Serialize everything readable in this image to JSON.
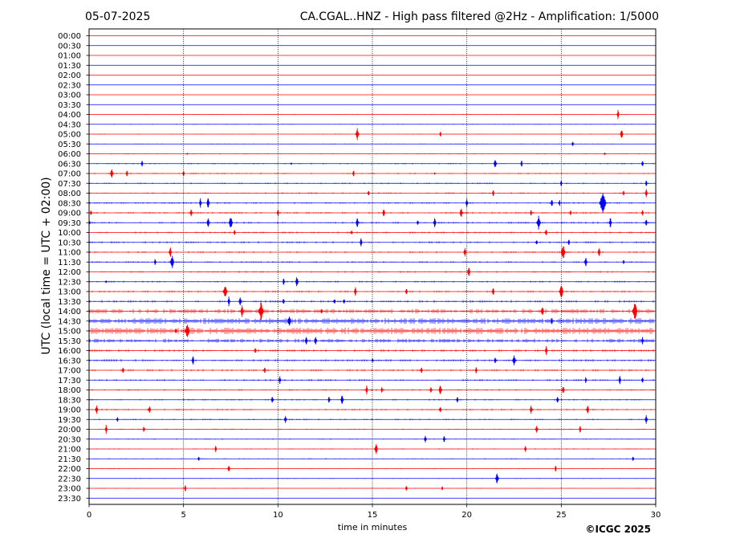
{
  "header": {
    "date": "05-07-2025",
    "title": "CA.CGAL..HNZ - High pass filtered @2Hz - Amplification: 1/5000"
  },
  "copyright": "©ICGC 2025",
  "chart_data": {
    "type": "line",
    "title": "CA.CGAL..HNZ - High pass filtered @2Hz - Amplification: 1/5000",
    "date": "05-07-2025",
    "xlabel": "time in minutes",
    "ylabel": "UTC (local time = UTC + 02:00)",
    "xlim": [
      0,
      30
    ],
    "x_ticks": [
      0,
      5,
      10,
      15,
      20,
      25,
      30
    ],
    "y_tick_labels": [
      "00:00",
      "00:30",
      "01:00",
      "01:30",
      "02:00",
      "02:30",
      "03:00",
      "03:30",
      "04:00",
      "04:30",
      "05:00",
      "05:30",
      "06:00",
      "06:30",
      "07:00",
      "07:30",
      "08:00",
      "08:30",
      "09:00",
      "09:30",
      "10:00",
      "10:30",
      "11:00",
      "11:30",
      "12:00",
      "12:30",
      "13:00",
      "13:30",
      "14:00",
      "14:30",
      "15:00",
      "15:30",
      "16:00",
      "16:30",
      "17:00",
      "17:30",
      "18:00",
      "18:30",
      "19:00",
      "19:30",
      "20:00",
      "20:30",
      "21:00",
      "21:30",
      "22:00",
      "22:30",
      "23:00",
      "23:30"
    ],
    "vertical_gridlines": [
      5,
      10,
      15,
      20,
      25
    ],
    "grid": "vertical dotted",
    "trace_colors": [
      "#ff0000",
      "#0000ff"
    ],
    "trace_color_pattern": "alternating, starting red at 00:00",
    "noise_level": [
      0.3,
      0.3,
      0.3,
      0.3,
      0.3,
      0.3,
      0.3,
      0.3,
      0.4,
      0.4,
      0.4,
      0.4,
      0.5,
      0.6,
      0.7,
      0.7,
      0.8,
      0.8,
      0.9,
      0.9,
      0.9,
      0.9,
      0.8,
      0.8,
      0.8,
      0.8,
      0.9,
      1.2,
      1.8,
      2.4,
      2.6,
      1.6,
      1.2,
      1.1,
      1.0,
      0.9,
      0.8,
      0.7,
      0.8,
      0.7,
      0.6,
      0.5,
      0.5,
      0.5,
      0.5,
      0.4,
      0.4,
      0.3
    ],
    "events": [
      {
        "row": 8,
        "t": 28.0,
        "amp": 6
      },
      {
        "row": 10,
        "t": 14.2,
        "amp": 8
      },
      {
        "row": 10,
        "t": 18.6,
        "amp": 4
      },
      {
        "row": 10,
        "t": 28.2,
        "amp": 7
      },
      {
        "row": 11,
        "t": 25.6,
        "amp": 4
      },
      {
        "row": 12,
        "t": 5.2,
        "amp": 2
      },
      {
        "row": 12,
        "t": 27.3,
        "amp": 3
      },
      {
        "row": 13,
        "t": 2.8,
        "amp": 5
      },
      {
        "row": 13,
        "t": 10.7,
        "amp": 2
      },
      {
        "row": 13,
        "t": 21.5,
        "amp": 7
      },
      {
        "row": 13,
        "t": 22.9,
        "amp": 5
      },
      {
        "row": 13,
        "t": 29.3,
        "amp": 5
      },
      {
        "row": 14,
        "t": 1.2,
        "amp": 7
      },
      {
        "row": 14,
        "t": 2.0,
        "amp": 5
      },
      {
        "row": 14,
        "t": 5.0,
        "amp": 5
      },
      {
        "row": 14,
        "t": 14.0,
        "amp": 5
      },
      {
        "row": 14,
        "t": 18.3,
        "amp": 2
      },
      {
        "row": 15,
        "t": 25.0,
        "amp": 5
      },
      {
        "row": 15,
        "t": 29.5,
        "amp": 5
      },
      {
        "row": 16,
        "t": 14.8,
        "amp": 5
      },
      {
        "row": 16,
        "t": 21.4,
        "amp": 5
      },
      {
        "row": 16,
        "t": 28.3,
        "amp": 5
      },
      {
        "row": 16,
        "t": 29.5,
        "amp": 6
      },
      {
        "row": 17,
        "t": 5.9,
        "amp": 6
      },
      {
        "row": 17,
        "t": 6.3,
        "amp": 7
      },
      {
        "row": 17,
        "t": 20.0,
        "amp": 6
      },
      {
        "row": 17,
        "t": 24.5,
        "amp": 6
      },
      {
        "row": 17,
        "t": 24.9,
        "amp": 5
      },
      {
        "row": 17,
        "t": 27.2,
        "amp": 16
      },
      {
        "row": 18,
        "t": 0.1,
        "amp": 5
      },
      {
        "row": 18,
        "t": 5.4,
        "amp": 6
      },
      {
        "row": 18,
        "t": 10.0,
        "amp": 5
      },
      {
        "row": 18,
        "t": 15.6,
        "amp": 6
      },
      {
        "row": 18,
        "t": 19.7,
        "amp": 7
      },
      {
        "row": 18,
        "t": 23.4,
        "amp": 5
      },
      {
        "row": 18,
        "t": 25.5,
        "amp": 4
      },
      {
        "row": 18,
        "t": 29.3,
        "amp": 5
      },
      {
        "row": 19,
        "t": 0.0,
        "amp": 7
      },
      {
        "row": 19,
        "t": 6.3,
        "amp": 7
      },
      {
        "row": 19,
        "t": 7.5,
        "amp": 9
      },
      {
        "row": 19,
        "t": 14.2,
        "amp": 7
      },
      {
        "row": 19,
        "t": 17.4,
        "amp": 5
      },
      {
        "row": 19,
        "t": 18.3,
        "amp": 7
      },
      {
        "row": 19,
        "t": 23.8,
        "amp": 10
      },
      {
        "row": 19,
        "t": 27.6,
        "amp": 7
      },
      {
        "row": 19,
        "t": 29.5,
        "amp": 6
      },
      {
        "row": 20,
        "t": 7.7,
        "amp": 5
      },
      {
        "row": 20,
        "t": 13.9,
        "amp": 4
      },
      {
        "row": 20,
        "t": 24.2,
        "amp": 5
      },
      {
        "row": 21,
        "t": 14.4,
        "amp": 6
      },
      {
        "row": 21,
        "t": 23.7,
        "amp": 5
      },
      {
        "row": 21,
        "t": 25.4,
        "amp": 5
      },
      {
        "row": 22,
        "t": 4.3,
        "amp": 7
      },
      {
        "row": 22,
        "t": 19.9,
        "amp": 7
      },
      {
        "row": 22,
        "t": 25.1,
        "amp": 10
      },
      {
        "row": 22,
        "t": 27.0,
        "amp": 6
      },
      {
        "row": 23,
        "t": 3.5,
        "amp": 5
      },
      {
        "row": 23,
        "t": 4.4,
        "amp": 9
      },
      {
        "row": 23,
        "t": 26.3,
        "amp": 7
      },
      {
        "row": 23,
        "t": 28.3,
        "amp": 4
      },
      {
        "row": 24,
        "t": 20.1,
        "amp": 7
      },
      {
        "row": 25,
        "t": 0.9,
        "amp": 3
      },
      {
        "row": 25,
        "t": 10.3,
        "amp": 5
      },
      {
        "row": 25,
        "t": 11.0,
        "amp": 7
      },
      {
        "row": 26,
        "t": 7.2,
        "amp": 10
      },
      {
        "row": 26,
        "t": 14.1,
        "amp": 6
      },
      {
        "row": 26,
        "t": 16.8,
        "amp": 5
      },
      {
        "row": 26,
        "t": 21.4,
        "amp": 6
      },
      {
        "row": 26,
        "t": 25.0,
        "amp": 10
      },
      {
        "row": 27,
        "t": 7.4,
        "amp": 6
      },
      {
        "row": 27,
        "t": 8.0,
        "amp": 6
      },
      {
        "row": 27,
        "t": 10.3,
        "amp": 4
      },
      {
        "row": 27,
        "t": 13.0,
        "amp": 5
      },
      {
        "row": 27,
        "t": 13.5,
        "amp": 5
      },
      {
        "row": 28,
        "t": 8.1,
        "amp": 8
      },
      {
        "row": 28,
        "t": 9.1,
        "amp": 13
      },
      {
        "row": 28,
        "t": 12.3,
        "amp": 5
      },
      {
        "row": 28,
        "t": 24.0,
        "amp": 7
      },
      {
        "row": 28,
        "t": 28.9,
        "amp": 12
      },
      {
        "row": 29,
        "t": 10.6,
        "amp": 8
      },
      {
        "row": 29,
        "t": 24.5,
        "amp": 5
      },
      {
        "row": 30,
        "t": 5.2,
        "amp": 11
      },
      {
        "row": 30,
        "t": 4.6,
        "amp": 5
      },
      {
        "row": 31,
        "t": 11.5,
        "amp": 6
      },
      {
        "row": 31,
        "t": 12.0,
        "amp": 6
      },
      {
        "row": 31,
        "t": 29.3,
        "amp": 6
      },
      {
        "row": 32,
        "t": 8.8,
        "amp": 5
      },
      {
        "row": 32,
        "t": 24.2,
        "amp": 6
      },
      {
        "row": 33,
        "t": 5.5,
        "amp": 6
      },
      {
        "row": 33,
        "t": 15.0,
        "amp": 3
      },
      {
        "row": 33,
        "t": 21.5,
        "amp": 5
      },
      {
        "row": 33,
        "t": 22.5,
        "amp": 8
      },
      {
        "row": 34,
        "t": 1.8,
        "amp": 5
      },
      {
        "row": 34,
        "t": 9.3,
        "amp": 5
      },
      {
        "row": 34,
        "t": 17.6,
        "amp": 5
      },
      {
        "row": 34,
        "t": 20.5,
        "amp": 5
      },
      {
        "row": 35,
        "t": 10.1,
        "amp": 6
      },
      {
        "row": 35,
        "t": 26.3,
        "amp": 5
      },
      {
        "row": 35,
        "t": 28.1,
        "amp": 6
      },
      {
        "row": 35,
        "t": 29.3,
        "amp": 5
      },
      {
        "row": 36,
        "t": 14.7,
        "amp": 6
      },
      {
        "row": 36,
        "t": 15.5,
        "amp": 5
      },
      {
        "row": 36,
        "t": 18.1,
        "amp": 5
      },
      {
        "row": 36,
        "t": 18.6,
        "amp": 8
      },
      {
        "row": 36,
        "t": 25.1,
        "amp": 6
      },
      {
        "row": 37,
        "t": 9.7,
        "amp": 6
      },
      {
        "row": 37,
        "t": 12.7,
        "amp": 5
      },
      {
        "row": 37,
        "t": 13.4,
        "amp": 7
      },
      {
        "row": 37,
        "t": 19.5,
        "amp": 5
      },
      {
        "row": 37,
        "t": 24.8,
        "amp": 6
      },
      {
        "row": 38,
        "t": 0.4,
        "amp": 7
      },
      {
        "row": 38,
        "t": 3.2,
        "amp": 6
      },
      {
        "row": 38,
        "t": 18.6,
        "amp": 5
      },
      {
        "row": 38,
        "t": 23.4,
        "amp": 6
      },
      {
        "row": 38,
        "t": 26.4,
        "amp": 6
      },
      {
        "row": 39,
        "t": 1.5,
        "amp": 4
      },
      {
        "row": 39,
        "t": 10.4,
        "amp": 6
      },
      {
        "row": 39,
        "t": 29.5,
        "amp": 6
      },
      {
        "row": 40,
        "t": 0.9,
        "amp": 6
      },
      {
        "row": 40,
        "t": 2.9,
        "amp": 5
      },
      {
        "row": 40,
        "t": 23.7,
        "amp": 6
      },
      {
        "row": 40,
        "t": 26.0,
        "amp": 5
      },
      {
        "row": 41,
        "t": 17.8,
        "amp": 6
      },
      {
        "row": 41,
        "t": 18.8,
        "amp": 5
      },
      {
        "row": 42,
        "t": 6.7,
        "amp": 5
      },
      {
        "row": 42,
        "t": 15.2,
        "amp": 8
      },
      {
        "row": 42,
        "t": 23.1,
        "amp": 5
      },
      {
        "row": 43,
        "t": 5.8,
        "amp": 4
      },
      {
        "row": 43,
        "t": 28.8,
        "amp": 4
      },
      {
        "row": 44,
        "t": 7.4,
        "amp": 6
      },
      {
        "row": 44,
        "t": 24.7,
        "amp": 5
      },
      {
        "row": 45,
        "t": 21.6,
        "amp": 8
      },
      {
        "row": 46,
        "t": 5.1,
        "amp": 5
      },
      {
        "row": 46,
        "t": 16.8,
        "amp": 4
      },
      {
        "row": 46,
        "t": 18.7,
        "amp": 3
      }
    ]
  }
}
